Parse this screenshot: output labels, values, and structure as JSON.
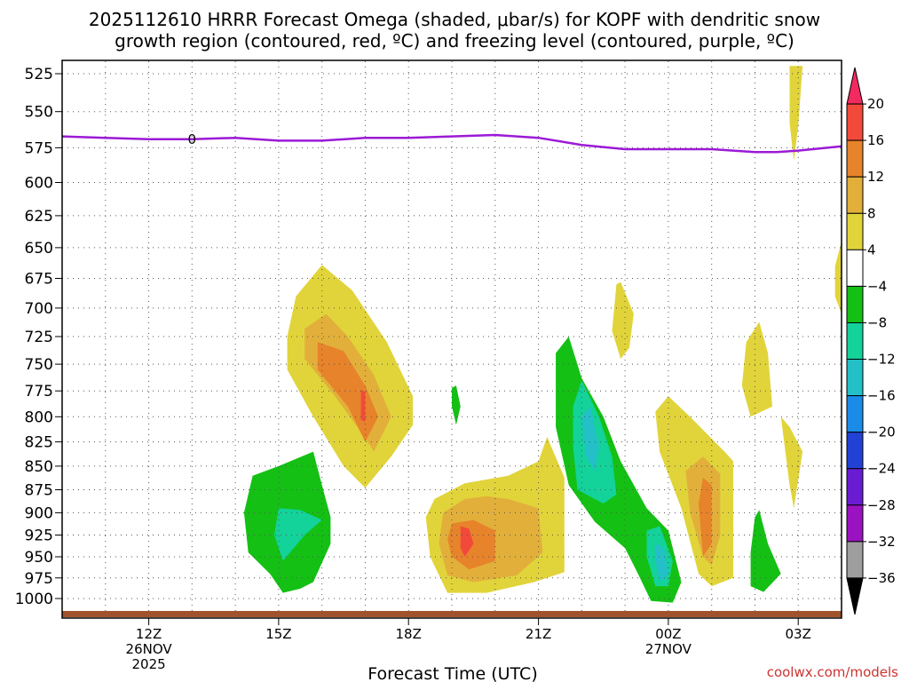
{
  "chart_data": {
    "type": "contour",
    "title_line1": "2025112610 HRRR Forecast Omega (shaded, μbar/s) for KOPF with dendritic snow",
    "title_line2": "growth region (contoured, red, ºC) and freezing level (contoured, purple, ºC)",
    "xlabel": "Forecast Time (UTC)",
    "x_ticks": [
      {
        "hour": 2,
        "label": "12Z",
        "sub1": "26NOV",
        "sub2": "2025"
      },
      {
        "hour": 5,
        "label": "15Z",
        "sub1": "",
        "sub2": ""
      },
      {
        "hour": 8,
        "label": "18Z",
        "sub1": "",
        "sub2": ""
      },
      {
        "hour": 11,
        "label": "21Z",
        "sub1": "",
        "sub2": ""
      },
      {
        "hour": 14,
        "label": "00Z",
        "sub1": "27NOV",
        "sub2": ""
      },
      {
        "hour": 17,
        "label": "03Z",
        "sub1": "",
        "sub2": ""
      }
    ],
    "x_range_hours": [
      0,
      18
    ],
    "y_range_hpa": [
      1010,
      520
    ],
    "y_ticks": [
      525,
      550,
      575,
      600,
      625,
      650,
      675,
      700,
      725,
      750,
      775,
      800,
      825,
      850,
      875,
      900,
      925,
      950,
      975,
      1000
    ],
    "freezing_level": {
      "label": "0",
      "label_hour": 3,
      "points": [
        [
          0,
          567
        ],
        [
          1,
          568
        ],
        [
          2,
          569
        ],
        [
          3,
          569
        ],
        [
          4,
          568
        ],
        [
          5,
          570
        ],
        [
          6,
          570
        ],
        [
          7,
          568
        ],
        [
          8,
          568
        ],
        [
          9,
          567
        ],
        [
          10,
          566
        ],
        [
          11,
          568
        ],
        [
          12,
          573
        ],
        [
          13,
          576
        ],
        [
          14,
          576
        ],
        [
          15,
          576
        ],
        [
          16,
          578
        ],
        [
          16.5,
          578
        ],
        [
          17,
          577
        ],
        [
          18,
          574
        ]
      ]
    },
    "omega_regions": [
      {
        "value": 4,
        "color": "#e1d43a",
        "points": [
          [
            5.2,
            725
          ],
          [
            5.4,
            690
          ],
          [
            6,
            664
          ],
          [
            6.7,
            685
          ],
          [
            7.5,
            730
          ],
          [
            8.1,
            780
          ],
          [
            8.1,
            808
          ],
          [
            7.6,
            840
          ],
          [
            7.0,
            873
          ],
          [
            6.5,
            850
          ],
          [
            5.8,
            800
          ],
          [
            5.2,
            755
          ]
        ]
      },
      {
        "value": 8,
        "color": "#e2b03a",
        "points": [
          [
            5.6,
            718
          ],
          [
            6.1,
            705
          ],
          [
            6.6,
            725
          ],
          [
            7.2,
            760
          ],
          [
            7.6,
            800
          ],
          [
            7.2,
            835
          ],
          [
            6.9,
            815
          ],
          [
            6.3,
            780
          ],
          [
            5.6,
            745
          ]
        ]
      },
      {
        "value": 12,
        "color": "#e7832b",
        "points": [
          [
            5.9,
            730
          ],
          [
            6.5,
            738
          ],
          [
            7.0,
            770
          ],
          [
            7.3,
            800
          ],
          [
            7.0,
            825
          ],
          [
            6.6,
            790
          ],
          [
            5.9,
            755
          ]
        ]
      },
      {
        "value": 16,
        "color": "#f24a3a",
        "points": [
          [
            6.9,
            774
          ],
          [
            7.0,
            776
          ],
          [
            7.0,
            805
          ],
          [
            6.9,
            803
          ]
        ]
      },
      {
        "value": 4,
        "color": "#e1d43a",
        "points": [
          [
            8.6,
            885
          ],
          [
            9.3,
            868
          ],
          [
            10.3,
            860
          ],
          [
            11.0,
            845
          ],
          [
            11.2,
            820
          ],
          [
            11.6,
            862
          ],
          [
            11.6,
            928
          ],
          [
            11.6,
            968
          ],
          [
            10.9,
            980
          ],
          [
            9.8,
            993
          ],
          [
            8.9,
            993
          ],
          [
            8.5,
            950
          ],
          [
            8.4,
            905
          ]
        ]
      },
      {
        "value": 8,
        "color": "#e2b03a",
        "points": [
          [
            8.8,
            900
          ],
          [
            9.3,
            885
          ],
          [
            9.8,
            882
          ],
          [
            10.3,
            885
          ],
          [
            11.0,
            895
          ],
          [
            11.1,
            945
          ],
          [
            10.5,
            972
          ],
          [
            9.5,
            980
          ],
          [
            8.9,
            972
          ],
          [
            8.7,
            935
          ]
        ]
      },
      {
        "value": 12,
        "color": "#e7832b",
        "points": [
          [
            9.0,
            912
          ],
          [
            9.5,
            908
          ],
          [
            10.0,
            920
          ],
          [
            10.0,
            955
          ],
          [
            9.4,
            965
          ],
          [
            9.0,
            950
          ],
          [
            8.9,
            930
          ]
        ]
      },
      {
        "value": 16,
        "color": "#f24a3a",
        "points": [
          [
            9.2,
            915
          ],
          [
            9.4,
            918
          ],
          [
            9.5,
            935
          ],
          [
            9.3,
            950
          ],
          [
            9.2,
            940
          ]
        ]
      },
      {
        "value": 4,
        "color": "#e1d43a",
        "points": [
          [
            12.8,
            680
          ],
          [
            12.9,
            678
          ],
          [
            13.2,
            705
          ],
          [
            13.1,
            735
          ],
          [
            12.9,
            745
          ],
          [
            12.7,
            720
          ]
        ]
      },
      {
        "value": 4,
        "color": "#e1d43a",
        "points": [
          [
            13.7,
            795
          ],
          [
            14.0,
            780
          ],
          [
            14.5,
            800
          ],
          [
            15.3,
            835
          ],
          [
            15.5,
            845
          ],
          [
            15.5,
            895
          ],
          [
            15.5,
            975
          ],
          [
            15.0,
            985
          ],
          [
            14.7,
            970
          ],
          [
            14.3,
            895
          ],
          [
            13.8,
            835
          ]
        ]
      },
      {
        "value": 8,
        "color": "#e2b03a",
        "points": [
          [
            14.4,
            855
          ],
          [
            14.8,
            840
          ],
          [
            15.2,
            858
          ],
          [
            15.2,
            925
          ],
          [
            15.0,
            960
          ],
          [
            14.8,
            950
          ],
          [
            14.5,
            900
          ]
        ]
      },
      {
        "value": 12,
        "color": "#e7832b",
        "points": [
          [
            14.8,
            862
          ],
          [
            15.0,
            870
          ],
          [
            15.0,
            935
          ],
          [
            14.8,
            950
          ],
          [
            14.7,
            890
          ]
        ]
      },
      {
        "value": 4,
        "color": "#e1d43a",
        "points": [
          [
            15.8,
            730
          ],
          [
            16.1,
            712
          ],
          [
            16.3,
            740
          ],
          [
            16.4,
            790
          ],
          [
            15.9,
            800
          ],
          [
            15.7,
            770
          ]
        ]
      },
      {
        "value": 4,
        "color": "#e1d43a",
        "points": [
          [
            16.6,
            800
          ],
          [
            16.8,
            810
          ],
          [
            17.1,
            835
          ],
          [
            16.9,
            895
          ],
          [
            16.8,
            870
          ]
        ]
      },
      {
        "value": 4,
        "color": "#e1d43a",
        "points": [
          [
            16.8,
            520
          ],
          [
            17.1,
            520
          ],
          [
            17.0,
            560
          ],
          [
            16.9,
            584
          ],
          [
            16.8,
            558
          ]
        ]
      },
      {
        "value": 4,
        "color": "#e1d43a",
        "points": [
          [
            17.85,
            665
          ],
          [
            18.0,
            645
          ],
          [
            18.0,
            705
          ],
          [
            17.85,
            690
          ]
        ]
      },
      {
        "value": -4,
        "color": "#14c014",
        "points": [
          [
            4.2,
            900
          ],
          [
            4.4,
            860
          ],
          [
            5.0,
            850
          ],
          [
            5.8,
            835
          ],
          [
            6.0,
            870
          ],
          [
            6.2,
            905
          ],
          [
            6.2,
            935
          ],
          [
            5.8,
            980
          ],
          [
            5.5,
            988
          ],
          [
            5.1,
            993
          ],
          [
            4.8,
            970
          ],
          [
            4.3,
            945
          ]
        ]
      },
      {
        "value": -8,
        "color": "#13d29a",
        "points": [
          [
            5.0,
            895
          ],
          [
            5.5,
            897
          ],
          [
            6.0,
            908
          ],
          [
            5.6,
            925
          ],
          [
            5.1,
            955
          ],
          [
            4.9,
            925
          ]
        ]
      },
      {
        "value": -4,
        "color": "#14c014",
        "points": [
          [
            9.0,
            772
          ],
          [
            9.1,
            770
          ],
          [
            9.2,
            790
          ],
          [
            9.1,
            808
          ],
          [
            9.0,
            790
          ]
        ]
      },
      {
        "value": -4,
        "color": "#14c014",
        "points": [
          [
            11.4,
            740
          ],
          [
            11.7,
            725
          ],
          [
            12.0,
            763
          ],
          [
            12.5,
            800
          ],
          [
            12.9,
            845
          ],
          [
            13.5,
            895
          ],
          [
            14.0,
            920
          ],
          [
            14.3,
            980
          ],
          [
            14.1,
            1005
          ],
          [
            13.6,
            1003
          ],
          [
            13.3,
            970
          ],
          [
            13.0,
            940
          ],
          [
            12.3,
            910
          ],
          [
            11.7,
            870
          ],
          [
            11.4,
            810
          ]
        ]
      },
      {
        "value": -8,
        "color": "#13d29a",
        "points": [
          [
            11.8,
            790
          ],
          [
            12.0,
            765
          ],
          [
            12.4,
            800
          ],
          [
            12.7,
            840
          ],
          [
            12.8,
            880
          ],
          [
            12.5,
            890
          ],
          [
            11.9,
            875
          ],
          [
            11.8,
            830
          ]
        ]
      },
      {
        "value": -12,
        "color": "#24c0c8",
        "points": [
          [
            12.0,
            800
          ],
          [
            12.2,
            790
          ],
          [
            12.4,
            830
          ],
          [
            12.3,
            855
          ],
          [
            12.1,
            840
          ]
        ]
      },
      {
        "value": -8,
        "color": "#13d29a",
        "points": [
          [
            13.5,
            920
          ],
          [
            13.8,
            915
          ],
          [
            14.1,
            955
          ],
          [
            14.0,
            985
          ],
          [
            13.7,
            985
          ],
          [
            13.5,
            950
          ]
        ]
      },
      {
        "value": -12,
        "color": "#24c0c8",
        "points": [
          [
            13.7,
            935
          ],
          [
            13.9,
            940
          ],
          [
            14.0,
            970
          ],
          [
            13.8,
            980
          ],
          [
            13.7,
            955
          ]
        ]
      },
      {
        "value": -4,
        "color": "#14c014",
        "points": [
          [
            16.0,
            905
          ],
          [
            16.1,
            897
          ],
          [
            16.3,
            935
          ],
          [
            16.6,
            970
          ],
          [
            16.2,
            992
          ],
          [
            15.9,
            985
          ],
          [
            15.9,
            945
          ]
        ]
      }
    ],
    "colorbar": {
      "levels": [
        "20",
        "16",
        "12",
        "8",
        "4",
        "−4",
        "−8",
        "−12",
        "−16",
        "−20",
        "−24",
        "−28",
        "−32",
        "−36"
      ],
      "colors": [
        "#f12a5f",
        "#f24a3a",
        "#e7832b",
        "#e2b03a",
        "#e1d43a",
        "#ffffff",
        "#14c014",
        "#13d29a",
        "#24c0c8",
        "#1a8ce8",
        "#2242d6",
        "#6a1cd3",
        "#9a13c0",
        "#9e9e9e",
        "#000000"
      ]
    },
    "credit": "coolwx.com/models"
  }
}
